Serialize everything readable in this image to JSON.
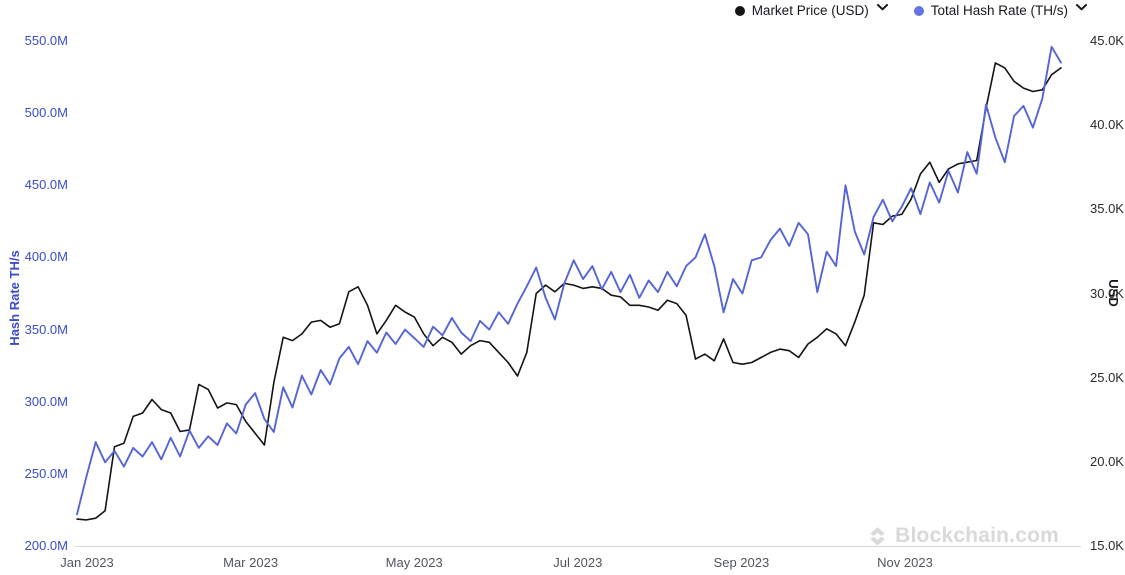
{
  "legend": {
    "items": [
      {
        "label": "Market Price (USD)",
        "color": "#141414"
      },
      {
        "label": "Total Hash Rate (TH/s)",
        "color": "#6374e4"
      }
    ]
  },
  "watermark": {
    "text": "Blockchain.com"
  },
  "chart_data": {
    "type": "line",
    "title": "",
    "grid": "off",
    "legend_position": "top-right",
    "x_axis": {
      "tick_labels": [
        "Jan 2023",
        "Mar 2023",
        "May 2023",
        "Jul 2023",
        "Sep 2023",
        "Nov 2023"
      ],
      "range": [
        "Jan 2023",
        "Jan 2024"
      ]
    },
    "y_axis_left": {
      "title": "Hash Rate TH/s",
      "color": "#3b4cc8",
      "unit": "M TH/s",
      "min": 200,
      "max": 550,
      "ticks": [
        {
          "value": 550,
          "label": "550.0M"
        },
        {
          "value": 500,
          "label": "500.0M"
        },
        {
          "value": 450,
          "label": "450.0M"
        },
        {
          "value": 400,
          "label": "400.0M"
        },
        {
          "value": 350,
          "label": "350.0M"
        },
        {
          "value": 300,
          "label": "300.0M"
        },
        {
          "value": 250,
          "label": "250.0M"
        },
        {
          "value": 200,
          "label": "200.0M"
        }
      ]
    },
    "y_axis_right": {
      "title": "USD",
      "color": "#16181d",
      "unit": "USD",
      "min": 15000,
      "max": 45000,
      "ticks": [
        {
          "value": 45000,
          "label": "45.0K"
        },
        {
          "value": 40000,
          "label": "40.0K"
        },
        {
          "value": 35000,
          "label": "35.0K"
        },
        {
          "value": 30000,
          "label": "30.0K"
        },
        {
          "value": 25000,
          "label": "25.0K"
        },
        {
          "value": 20000,
          "label": "20.0K"
        },
        {
          "value": 15000,
          "label": "15.0K"
        }
      ]
    },
    "series": [
      {
        "name": "Market Price (USD)",
        "axis": "right",
        "color": "#141414",
        "values": [
          16600,
          16550,
          16650,
          17100,
          20900,
          21100,
          22700,
          22900,
          23700,
          23100,
          22900,
          21800,
          21900,
          24600,
          24300,
          23200,
          23500,
          23400,
          22400,
          21700,
          21000,
          24700,
          27400,
          27200,
          27600,
          28300,
          28400,
          28000,
          28200,
          30100,
          30400,
          29300,
          27600,
          28400,
          29300,
          28900,
          28600,
          27600,
          26900,
          27400,
          27100,
          26400,
          26900,
          27200,
          27100,
          26500,
          25900,
          25100,
          26500,
          30000,
          30500,
          30100,
          30600,
          30500,
          30300,
          30400,
          30300,
          29900,
          29800,
          29300,
          29300,
          29200,
          29000,
          29600,
          29400,
          28700,
          26100,
          26400,
          26000,
          27300,
          25900,
          25800,
          25900,
          26200,
          26500,
          26700,
          26600,
          26200,
          27000,
          27400,
          27900,
          27600,
          26900,
          28300,
          29900,
          34200,
          34100,
          34600,
          34700,
          35600,
          37100,
          37800,
          36600,
          37400,
          37700,
          37800,
          37900,
          41000,
          43700,
          43400,
          42600,
          42200,
          42000,
          42100,
          43000,
          43400
        ]
      },
      {
        "name": "Total Hash Rate (TH/s)",
        "axis": "left",
        "color": "#5565d6",
        "values": [
          222,
          248,
          272,
          258,
          266,
          255,
          268,
          262,
          272,
          260,
          275,
          262,
          280,
          268,
          276,
          270,
          285,
          278,
          298,
          306,
          288,
          279,
          310,
          296,
          318,
          305,
          322,
          312,
          330,
          338,
          326,
          342,
          334,
          348,
          340,
          350,
          344,
          338,
          352,
          346,
          358,
          348,
          342,
          356,
          350,
          362,
          354,
          368,
          380,
          393,
          372,
          357,
          382,
          398,
          385,
          394,
          378,
          390,
          376,
          388,
          372,
          384,
          376,
          390,
          380,
          394,
          400,
          416,
          394,
          362,
          385,
          375,
          398,
          400,
          412,
          420,
          408,
          424,
          416,
          376,
          404,
          394,
          450,
          418,
          402,
          428,
          440,
          425,
          435,
          448,
          430,
          452,
          438,
          460,
          445,
          473,
          458,
          506,
          483,
          466,
          498,
          505,
          490,
          510,
          546,
          535
        ]
      }
    ]
  }
}
